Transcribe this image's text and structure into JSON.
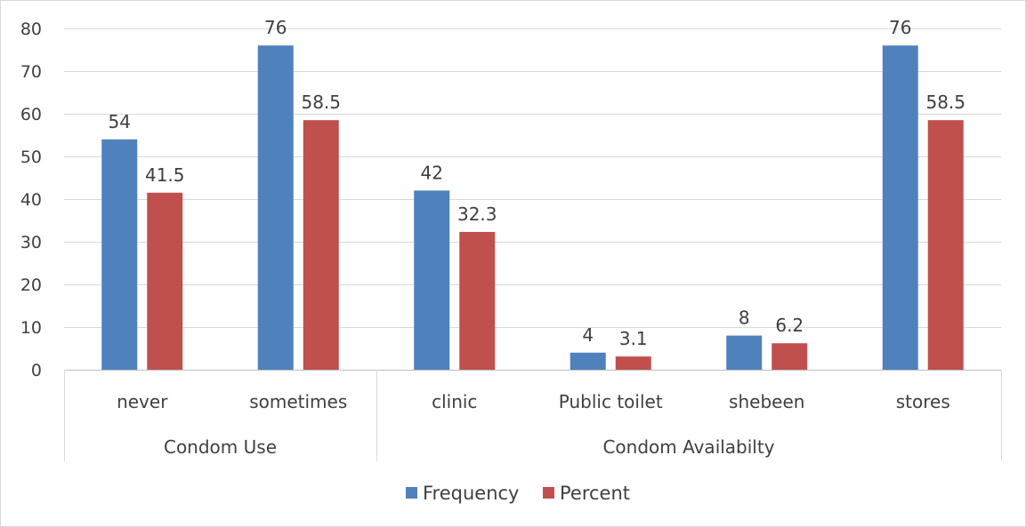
{
  "chart_data": {
    "type": "bar",
    "title": "",
    "xlabel": "",
    "ylabel": "",
    "ylim": [
      0,
      80
    ],
    "yticks": [
      0,
      10,
      20,
      30,
      40,
      50,
      60,
      70,
      80
    ],
    "grid": true,
    "legend_position": "bottom",
    "groups": [
      {
        "label": "Condom Use",
        "categories": [
          "never",
          "sometimes"
        ]
      },
      {
        "label": "Condom Availabilty",
        "categories": [
          "clinic",
          "Public toilet",
          "shebeen",
          "stores"
        ]
      }
    ],
    "categories": [
      "never",
      "sometimes",
      "clinic",
      "Public toilet",
      "shebeen",
      "stores"
    ],
    "series": [
      {
        "name": "Frequency",
        "color": "#4f81bd",
        "values": [
          54,
          76,
          42,
          4,
          8,
          76
        ],
        "labels": [
          "54",
          "76",
          "42",
          "4",
          "8",
          "76"
        ]
      },
      {
        "name": "Percent",
        "color": "#c0504d",
        "values": [
          41.5,
          58.5,
          32.3,
          3.1,
          6.2,
          58.5
        ],
        "labels": [
          "41.5",
          "58.5",
          "32.3",
          "3.1",
          "6.2",
          "58.5"
        ]
      }
    ]
  }
}
